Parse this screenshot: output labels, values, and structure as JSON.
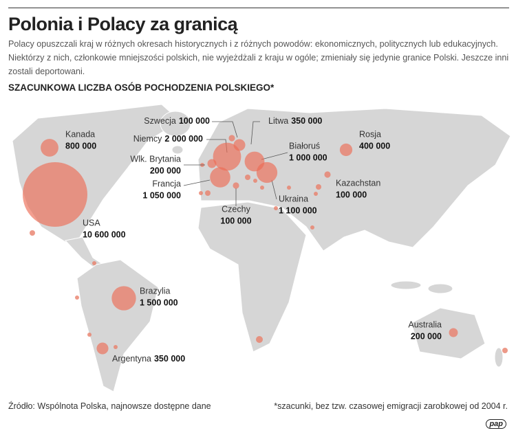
{
  "header": {
    "title": "Polonia i Polacy za granicą",
    "description": "Polacy opuszczali kraj w różnych okresach historycznych i z różnych powodów: ekonomicznych, politycznych lub edukacyjnych. Niektórzy z nich, członkowie mniejszości polskich, nie wyjeżdżali z kraju w ogóle; zmieniały się jedynie granice Polski. Jeszcze inni zostali deportowani.",
    "subtitle": "SZACUNKOWA LICZBA OSÓB POCHODZENIA POLSKIEGO*"
  },
  "countries": [
    {
      "name": "USA",
      "value": 10600000,
      "value_label": "10 600 000"
    },
    {
      "name": "Kanada",
      "value": 800000,
      "value_label": "800 000"
    },
    {
      "name": "Brazylia",
      "value": 1500000,
      "value_label": "1 500 000"
    },
    {
      "name": "Argentyna",
      "value": 350000,
      "value_label": "350 000"
    },
    {
      "name": "Australia",
      "value": 200000,
      "value_label": "200 000"
    },
    {
      "name": "Rosja",
      "value": 400000,
      "value_label": "400 000"
    },
    {
      "name": "Kazachstan",
      "value": 100000,
      "value_label": "100 000"
    },
    {
      "name": "Ukraina",
      "value": 1100000,
      "value_label": "1 100 000"
    },
    {
      "name": "Białoruś",
      "value": 1000000,
      "value_label": "1 000 000"
    },
    {
      "name": "Litwa",
      "value": 350000,
      "value_label": "350 000"
    },
    {
      "name": "Szwecja",
      "value": 100000,
      "value_label": "100 000"
    },
    {
      "name": "Niemcy",
      "value": 2000000,
      "value_label": "2 000 000"
    },
    {
      "name": "Wlk. Brytania",
      "value": 200000,
      "value_label": "200 000"
    },
    {
      "name": "Francja",
      "value": 1050000,
      "value_label": "1 050 000"
    },
    {
      "name": "Czechy",
      "value": 100000,
      "value_label": "100 000"
    }
  ],
  "footer": {
    "source": "Źródło: Wspólnota Polska, najnowsze dostępne dane",
    "note": "*szacunki, bez tzw. czasowej emigracji zarobkowej od 2004 r."
  },
  "logo": "pap"
}
